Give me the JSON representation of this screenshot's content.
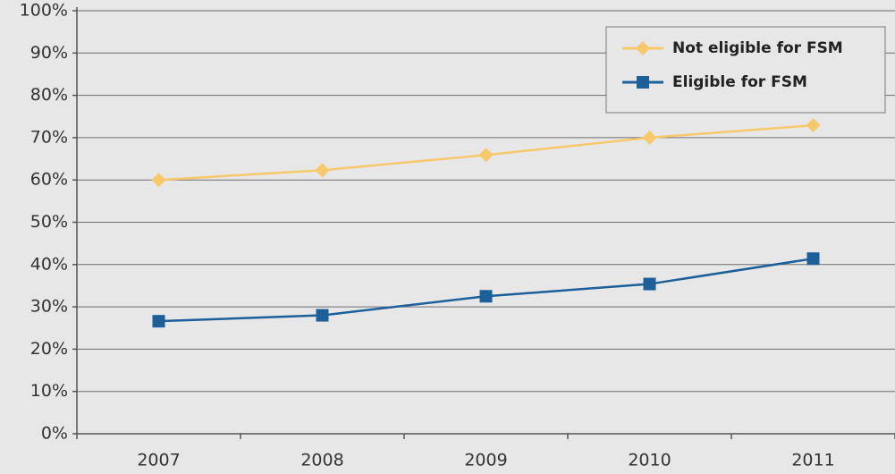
{
  "chart_data": {
    "type": "line",
    "categories": [
      "2007",
      "2008",
      "2009",
      "2010",
      "2011"
    ],
    "series": [
      {
        "name": "Not eligible for FSM",
        "color": "#f7c96b",
        "marker": "diamond",
        "values": [
          60,
          62.3,
          65.9,
          70,
          72.9
        ]
      },
      {
        "name": "Eligible for FSM",
        "color": "#1d5f99",
        "marker": "square",
        "values": [
          26.6,
          28,
          32.5,
          35.4,
          41.4
        ]
      }
    ],
    "ylim": [
      0,
      100
    ],
    "yticks": [
      {
        "value": 0,
        "label": "0%"
      },
      {
        "value": 10,
        "label": "10%"
      },
      {
        "value": 20,
        "label": "20%"
      },
      {
        "value": 30,
        "label": "30%"
      },
      {
        "value": 40,
        "label": "40%"
      },
      {
        "value": 50,
        "label": "50%"
      },
      {
        "value": 60,
        "label": "60%"
      },
      {
        "value": 70,
        "label": "70%"
      },
      {
        "value": 80,
        "label": "80%"
      },
      {
        "value": 90,
        "label": "90%"
      },
      {
        "value": 100,
        "label": "100%"
      }
    ],
    "grid": true,
    "legend": "top-right"
  }
}
